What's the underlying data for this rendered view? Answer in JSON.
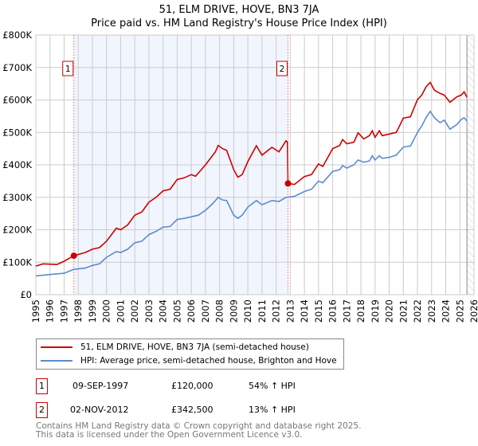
{
  "chart_data": {
    "type": "line",
    "title": "51, ELM DRIVE, HOVE, BN3 7JA",
    "subtitle": "Price paid vs. HM Land Registry's House Price Index (HPI)",
    "xlim": [
      1995,
      2026
    ],
    "ylim": [
      0,
      800000
    ],
    "yticks": [
      {
        "v": 0,
        "label": "£0"
      },
      {
        "v": 100000,
        "label": "£100K"
      },
      {
        "v": 200000,
        "label": "£200K"
      },
      {
        "v": 300000,
        "label": "£300K"
      },
      {
        "v": 400000,
        "label": "£400K"
      },
      {
        "v": 500000,
        "label": "£500K"
      },
      {
        "v": 600000,
        "label": "£600K"
      },
      {
        "v": 700000,
        "label": "£700K"
      },
      {
        "v": 800000,
        "label": "£800K"
      }
    ],
    "xticks": [
      "1995",
      "1996",
      "1997",
      "1998",
      "1999",
      "2000",
      "2001",
      "2002",
      "2003",
      "2004",
      "2005",
      "2006",
      "2007",
      "2008",
      "2009",
      "2010",
      "2011",
      "2012",
      "2013",
      "2014",
      "2015",
      "2016",
      "2017",
      "2018",
      "2019",
      "2020",
      "2021",
      "2022",
      "2023",
      "2024",
      "2025",
      "2026"
    ],
    "grid": true,
    "shaded_range": [
      1997.69,
      2012.84
    ],
    "forecast_from": 2025.5,
    "series": [
      {
        "name": "51, ELM DRIVE, HOVE, BN3 7JA (semi-detached house)",
        "color": "#cc0000",
        "x": [
          1995,
          1995.5,
          1996.5,
          1997,
          1997.69,
          1998.5,
          1999,
          1999.5,
          2000,
          2000.7,
          2001,
          2001.5,
          2002,
          2002.5,
          2003,
          2003.5,
          2004,
          2004.5,
          2005,
          2005.5,
          2006,
          2006.3,
          2006.7,
          2007,
          2007.7,
          2007.9,
          2008.2,
          2008.5,
          2009,
          2009.3,
          2009.6,
          2010,
          2010.6,
          2011,
          2011.7,
          2012.2,
          2012.7,
          2012.8,
          2012.84,
          2013.3,
          2014,
          2014.5,
          2015,
          2015.3,
          2016,
          2016.5,
          2016.7,
          2017,
          2017.5,
          2017.8,
          2018.2,
          2018.6,
          2018.8,
          2019,
          2019.3,
          2019.5,
          2020,
          2020.5,
          2021,
          2021.5,
          2022,
          2022.3,
          2022.6,
          2022.9,
          2023.2,
          2023.6,
          2023.9,
          2024.3,
          2024.8,
          2025.1,
          2025.3,
          2025.5
        ],
        "y": [
          88000,
          95000,
          93000,
          103000,
          120000,
          130000,
          140000,
          145000,
          165000,
          205000,
          200000,
          215000,
          245000,
          255000,
          285000,
          300000,
          320000,
          325000,
          355000,
          360000,
          370000,
          365000,
          385000,
          400000,
          440000,
          460000,
          450000,
          445000,
          385000,
          362000,
          370000,
          410000,
          459000,
          430000,
          454000,
          440000,
          474000,
          470000,
          342500,
          340000,
          364000,
          370000,
          403000,
          395000,
          450000,
          460000,
          478000,
          465000,
          470000,
          499000,
          480000,
          490000,
          505000,
          485000,
          505000,
          490000,
          495000,
          500000,
          544000,
          548000,
          601000,
          615000,
          640000,
          654000,
          630000,
          620000,
          615000,
          593000,
          610000,
          615000,
          625000,
          608000
        ]
      },
      {
        "name": "HPI: Average price, semi-detached house, Brighton and Hove",
        "color": "#5b8bd0",
        "x": [
          1995,
          1996,
          1997,
          1997.69,
          1998.5,
          1999,
          1999.5,
          2000,
          2000.7,
          2001,
          2001.5,
          2002,
          2002.5,
          2003,
          2003.5,
          2004,
          2004.5,
          2005,
          2005.5,
          2006,
          2006.5,
          2007,
          2007.5,
          2007.9,
          2008.2,
          2008.5,
          2009,
          2009.3,
          2009.6,
          2010,
          2010.6,
          2011,
          2011.7,
          2012.2,
          2012.7,
          2013.3,
          2014,
          2014.5,
          2015,
          2015.3,
          2016,
          2016.5,
          2016.7,
          2017,
          2017.5,
          2017.8,
          2018.2,
          2018.6,
          2018.8,
          2019,
          2019.3,
          2019.5,
          2020,
          2020.5,
          2021,
          2021.5,
          2022,
          2022.3,
          2022.6,
          2022.9,
          2023.2,
          2023.6,
          2023.9,
          2024.3,
          2024.8,
          2025.1,
          2025.3,
          2025.5
        ],
        "y": [
          58000,
          62000,
          66000,
          78000,
          82000,
          90000,
          95000,
          115000,
          133000,
          130000,
          140000,
          160000,
          165000,
          185000,
          195000,
          208000,
          210000,
          232000,
          235000,
          240000,
          245000,
          260000,
          280000,
          300000,
          292000,
          290000,
          245000,
          235000,
          245000,
          270000,
          290000,
          277000,
          290000,
          287000,
          300000,
          303000,
          318000,
          325000,
          350000,
          345000,
          380000,
          385000,
          398000,
          390000,
          400000,
          415000,
          408000,
          412000,
          428000,
          415000,
          428000,
          420000,
          423000,
          430000,
          455000,
          458000,
          500000,
          520000,
          545000,
          565000,
          545000,
          530000,
          538000,
          510000,
          525000,
          540000,
          545000,
          535000
        ]
      }
    ],
    "sales": [
      {
        "id": "1",
        "x": 1997.69,
        "y": 120000,
        "date": "09-SEP-1997",
        "price": "£120,000",
        "hpi": "54% ↑ HPI"
      },
      {
        "id": "2",
        "x": 2012.84,
        "y": 342500,
        "date": "02-NOV-2012",
        "price": "£342,500",
        "hpi": "13% ↑ HPI"
      }
    ],
    "legend_placement": "below"
  },
  "footer": {
    "line1": "Contains HM Land Registry data © Crown copyright and database right 2025.",
    "line2": "This data is licensed under the Open Government Licence v3.0."
  }
}
